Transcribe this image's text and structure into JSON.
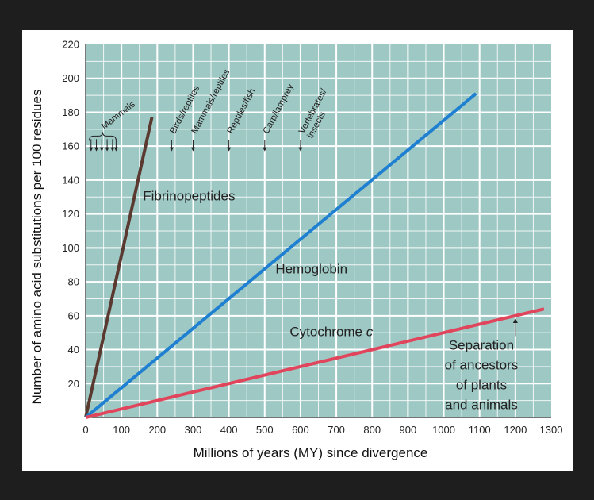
{
  "chart_data": {
    "type": "line",
    "xlabel": "Millions of years (MY) since divergence",
    "ylabel": "Number of amino acid substitutions per 100 residues",
    "xlim": [
      0,
      1300
    ],
    "ylim": [
      0,
      220
    ],
    "x_ticks": [
      0,
      100,
      200,
      300,
      400,
      500,
      600,
      700,
      800,
      900,
      1000,
      1100,
      1200,
      1300
    ],
    "y_ticks": [
      20,
      40,
      60,
      80,
      100,
      120,
      140,
      160,
      180,
      200,
      220
    ],
    "grid": true,
    "colors": {
      "plot_bg": "#9ec8c4",
      "grid": "#ffffff",
      "frame": "#222222",
      "annotation": "#222222"
    },
    "series": [
      {
        "name": "Fibrinopeptides",
        "color": "#5a3a30",
        "x": [
          0,
          185
        ],
        "y": [
          0,
          177
        ]
      },
      {
        "name": "Hemoglobin",
        "color": "#1f7fd0",
        "x": [
          0,
          1090
        ],
        "y": [
          0,
          191
        ]
      },
      {
        "name": "Cytochrome c",
        "color": "#e0455c",
        "x": [
          0,
          1280
        ],
        "y": [
          0,
          64
        ]
      }
    ],
    "series_labels": [
      {
        "text": "Fibrinopeptides",
        "x": 160,
        "y": 128
      },
      {
        "text": "Hemoglobin",
        "x": 530,
        "y": 85
      },
      {
        "text": "Cytochrome c",
        "x": 570,
        "y": 48
      }
    ],
    "divergence_labels": [
      {
        "text": "Mammals",
        "x": 70,
        "bracket_from": 10,
        "bracket_to": 85,
        "arrows_x": [
          15,
          30,
          45,
          60,
          75,
          85
        ]
      },
      {
        "text": "Birds/reptiles",
        "x": 240
      },
      {
        "text": "Mammals/reptiles",
        "x": 300
      },
      {
        "text": "Reptiles/fish",
        "x": 400
      },
      {
        "text": "Carp/lamprey",
        "x": 500
      },
      {
        "text": "Vertebrates/ insects",
        "x": 600
      }
    ],
    "separation_note": {
      "lines": [
        "Separation",
        "of ancestors",
        "of plants",
        "and animals"
      ],
      "arrow_x": 1200
    }
  }
}
